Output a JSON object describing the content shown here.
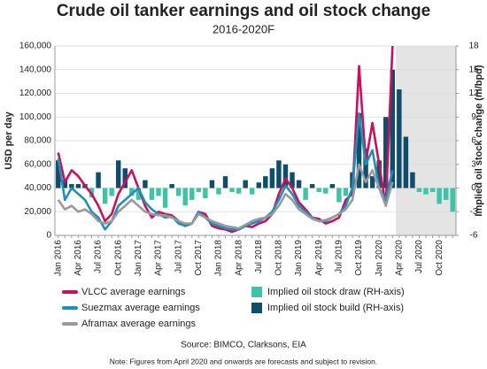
{
  "chart_data": {
    "type": "combo",
    "title": "Crude oil tanker earnings and oil stock change",
    "subtitle": "2016-2020F",
    "y_label": "USD per day",
    "y2_label": "Implied oil stock change (m/bpd)",
    "source": "Source: BIMCO, Clarksons, EIA",
    "note": "Note: Figures from April 2020 and onwards are forecasts and subject to revision.",
    "categories": [
      "Jan 2016",
      null,
      null,
      "Apr 2016",
      null,
      null,
      "Jul 2016",
      null,
      null,
      "Oct 2016",
      null,
      null,
      "Jan 2017",
      null,
      null,
      "Apr 2017",
      null,
      null,
      "Jul 2017",
      null,
      null,
      "Oct 2017",
      null,
      null,
      "Jan 2018",
      null,
      null,
      "Apr 2018",
      null,
      null,
      "Jul 2018",
      null,
      null,
      "Oct 2018",
      null,
      null,
      "Jan 2019",
      null,
      null,
      "Apr 2019",
      null,
      null,
      "Jul 2019",
      null,
      null,
      "Oct 2019",
      null,
      null,
      "Jan 2020",
      null,
      null,
      "Apr 2020",
      null,
      null,
      "Jul 2020",
      null,
      null,
      "Oct 2020",
      null,
      null
    ],
    "shade": {
      "from": "Apr 2020",
      "color": "#e4e4e4"
    },
    "grid": true,
    "ylim": [
      0,
      160000
    ],
    "yticks": [
      0,
      {
        "value": 20000,
        "label": "20,000"
      },
      {
        "value": 40000,
        "label": "40,000"
      },
      {
        "value": 60000,
        "label": "60,000"
      },
      {
        "value": 80000,
        "label": "80,000"
      },
      {
        "value": 100000,
        "label": "100,000"
      },
      {
        "value": 120000,
        "label": "120,000"
      },
      {
        "value": 140000,
        "label": "140,000"
      },
      {
        "value": 160000,
        "label": "160,000"
      }
    ],
    "y2lim": [
      -6,
      18
    ],
    "y2ticks": [
      -6,
      -3,
      0,
      3,
      6,
      9,
      12,
      15,
      18
    ],
    "series": [
      {
        "name": "Implied oil stock draw (RH-axis)",
        "kind": "bar",
        "axis": "y2",
        "color": "#3cc4a4",
        "values": [
          null,
          null,
          null,
          null,
          null,
          -1.2,
          null,
          -2,
          -1,
          null,
          null,
          -1,
          -1.5,
          null,
          -1.5,
          -1,
          -2.5,
          null,
          -1,
          -2.2,
          -1.5,
          -0.5,
          -1.3,
          null,
          -0.8,
          null,
          -0.5,
          -0.7,
          null,
          -0.8,
          null,
          null,
          null,
          null,
          null,
          null,
          null,
          -1.5,
          null,
          -0.5,
          -0.7,
          null,
          -1.8,
          -1,
          null,
          null,
          null,
          null,
          null,
          null,
          null,
          null,
          null,
          null,
          -0.5,
          -0.8,
          -0.5,
          -2,
          -1.5,
          -3
        ]
      },
      {
        "name": "Implied oil stock build (RH-axis)",
        "kind": "bar",
        "axis": "y2",
        "color": "#0e4d6c",
        "values": [
          3.5,
          1,
          0.5,
          0.5,
          0.5,
          null,
          2,
          null,
          null,
          3.5,
          2.5,
          null,
          null,
          1,
          null,
          null,
          null,
          0.5,
          null,
          null,
          null,
          null,
          null,
          1,
          null,
          1.5,
          null,
          null,
          1,
          null,
          0.7,
          1.5,
          2.5,
          3.5,
          3,
          2,
          1,
          null,
          0.5,
          null,
          null,
          0.5,
          null,
          null,
          2,
          9.5,
          5,
          1.5,
          3.5,
          9,
          15,
          12.5,
          6.5,
          2,
          null,
          null,
          null,
          null,
          null,
          null
        ]
      },
      {
        "name": "VLCC average earnings",
        "kind": "line",
        "color": "#cc0f5a",
        "values": [
          70000,
          45000,
          55000,
          50000,
          42000,
          35000,
          25000,
          12000,
          18000,
          35000,
          45000,
          55000,
          40000,
          25000,
          15000,
          20000,
          18000,
          17000,
          12000,
          8000,
          10000,
          20000,
          18000,
          8000,
          6000,
          5000,
          3000,
          5000,
          8000,
          7000,
          10000,
          12000,
          18000,
          35000,
          48000,
          40000,
          28000,
          22000,
          15000,
          14000,
          10000,
          12000,
          15000,
          30000,
          35000,
          143000,
          62000,
          95000,
          60000,
          25000,
          160000,
          null,
          null,
          null,
          null,
          null,
          null,
          null,
          null,
          null
        ]
      },
      {
        "name": "Suezmax average earnings",
        "kind": "line",
        "color": "#1f8fb5",
        "values": [
          65000,
          30000,
          40000,
          35000,
          30000,
          20000,
          15000,
          5000,
          12000,
          25000,
          30000,
          35000,
          40000,
          28000,
          22000,
          18000,
          15000,
          16000,
          10000,
          8000,
          10000,
          20000,
          15000,
          10000,
          8000,
          6000,
          5000,
          5000,
          8000,
          10000,
          12000,
          15000,
          20000,
          30000,
          42000,
          35000,
          25000,
          20000,
          15000,
          12000,
          12000,
          15000,
          18000,
          25000,
          40000,
          103000,
          60000,
          72000,
          40000,
          30000,
          55000,
          null,
          null,
          null,
          null,
          null,
          null,
          null,
          null,
          null
        ]
      },
      {
        "name": "Aframax average earnings",
        "kind": "line",
        "color": "#9a9a9a",
        "values": [
          30000,
          22000,
          25000,
          20000,
          22000,
          18000,
          12000,
          10000,
          12000,
          20000,
          25000,
          30000,
          25000,
          20000,
          18000,
          17000,
          17000,
          15000,
          12000,
          10000,
          10000,
          18000,
          15000,
          12000,
          10000,
          8000,
          7000,
          6000,
          9000,
          12000,
          14000,
          15000,
          18000,
          25000,
          35000,
          30000,
          22000,
          18000,
          14000,
          12000,
          13000,
          15000,
          18000,
          22000,
          30000,
          60000,
          45000,
          55000,
          40000,
          25000,
          45000,
          null,
          null,
          null,
          null,
          null,
          null,
          null,
          null,
          null
        ]
      }
    ]
  }
}
